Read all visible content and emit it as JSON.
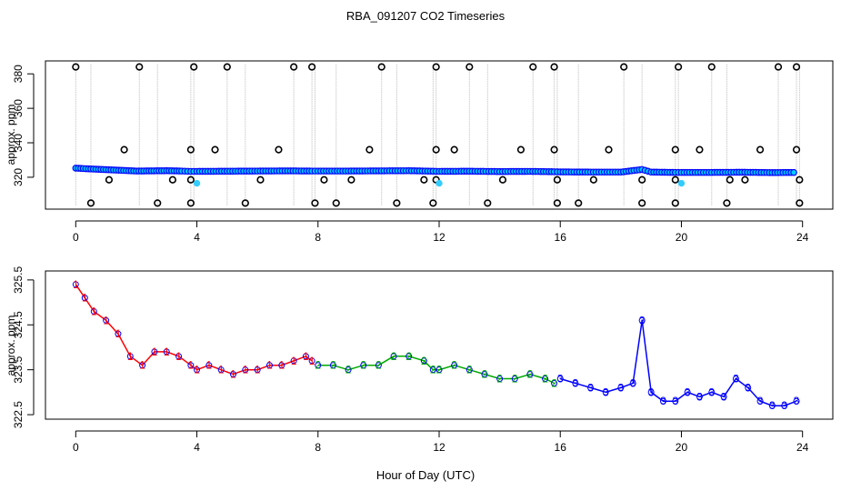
{
  "chart_data": [
    {
      "type": "scatter",
      "title": "RBA_091207  CO2 Timeseries",
      "xlabel": "",
      "ylabel": "approx. ppm",
      "xlim": [
        -1,
        25
      ],
      "ylim": [
        301.5,
        387.5
      ],
      "xticks": [
        0,
        4,
        8,
        12,
        16,
        20,
        24
      ],
      "yticks": [
        320,
        340,
        360,
        380
      ],
      "colors": {
        "main_points": "#0000ff",
        "main_fill": "#00ccff",
        "outlier": "#000000",
        "spike_lines": "#bbbbbb",
        "cyan_points": "#33ccff"
      },
      "series": [
        {
          "name": "",
          "kind": "smooth_points",
          "x": [
            0,
            0.5,
            1,
            1.5,
            2,
            2.5,
            3,
            3.5,
            3.8,
            4,
            5,
            6,
            7,
            7.8,
            8,
            9,
            10,
            11,
            11.8,
            12,
            13,
            14,
            15,
            15.8,
            16,
            17,
            18,
            18.7,
            19,
            19.8,
            20,
            21,
            22,
            23,
            23.8
          ],
          "y": [
            325.3,
            324.8,
            324.4,
            324.0,
            323.6,
            323.7,
            323.8,
            323.6,
            323.4,
            323.4,
            323.5,
            323.6,
            323.7,
            323.6,
            323.6,
            323.6,
            323.7,
            323.8,
            323.5,
            323.4,
            323.5,
            323.3,
            323.4,
            323.2,
            323.1,
            323.0,
            323.0,
            324.5,
            323.0,
            322.8,
            322.8,
            322.8,
            322.9,
            322.7,
            322.8
          ]
        },
        {
          "name": "",
          "kind": "outliers_high",
          "x": [
            0,
            2.1,
            3.9,
            5.0,
            7.2,
            7.8,
            10.1,
            11.9,
            13.0,
            15.1,
            15.8,
            18.1,
            19.9,
            21.0,
            23.2,
            23.8
          ],
          "y": [
            384,
            384,
            384,
            384,
            384,
            384,
            384,
            384,
            384,
            384,
            384,
            384,
            384,
            384,
            384,
            384
          ]
        },
        {
          "name": "",
          "kind": "outliers_mid",
          "x": [
            1.6,
            3.8,
            4.6,
            6.7,
            9.7,
            11.9,
            12.5,
            14.7,
            15.8,
            17.6,
            19.8,
            20.6,
            22.6,
            23.8
          ],
          "y": [
            336,
            336,
            336,
            336,
            336,
            336,
            336,
            336,
            336,
            336,
            336,
            336,
            336,
            336
          ]
        },
        {
          "name": "",
          "kind": "outliers_low",
          "x": [
            1.1,
            3.2,
            3.8,
            6.1,
            8.2,
            9.1,
            11.5,
            11.9,
            14.1,
            15.9,
            17.1,
            18.7,
            19.8,
            21.6,
            22.1,
            23.9
          ],
          "y": [
            318.5,
            318.5,
            318.5,
            318.5,
            318.5,
            318.5,
            318.5,
            318.5,
            318.5,
            318.5,
            318.5,
            318.5,
            318.5,
            318.5,
            318.5,
            318.5
          ]
        },
        {
          "name": "",
          "kind": "outliers_bottom",
          "x": [
            0.5,
            2.7,
            3.8,
            5.6,
            7.9,
            8.6,
            10.6,
            11.8,
            13.6,
            15.9,
            16.6,
            18.7,
            19.8,
            21.5,
            23.9
          ],
          "y": [
            305,
            305,
            305,
            305,
            305,
            305,
            305,
            305,
            305,
            305,
            305,
            305,
            305,
            305,
            305
          ]
        },
        {
          "name": "",
          "kind": "cyan_points",
          "x": [
            4.0,
            12.0,
            20.0
          ],
          "y": [
            316.5,
            316.5,
            316.5
          ]
        }
      ]
    },
    {
      "type": "line",
      "title": "",
      "xlabel": "Hour of Day (UTC)",
      "ylabel": "approx. ppm",
      "xlim": [
        -1,
        25
      ],
      "ylim": [
        322.4,
        325.7
      ],
      "xticks": [
        0,
        4,
        8,
        12,
        16,
        20,
        24
      ],
      "yticks": [
        322.5,
        323.5,
        324.5,
        325.5
      ],
      "colors": {
        "series_1": "#ff0000",
        "series_2": "#00aa00",
        "series_3": "#0000ff"
      },
      "series": [
        {
          "name": "",
          "label_glyph": "1",
          "x": [
            0,
            0.3,
            0.6,
            1.0,
            1.4,
            1.8,
            2.2,
            2.6,
            3.0,
            3.4,
            3.8,
            4.0,
            4.4,
            4.8,
            5.2,
            5.6,
            6.0,
            6.4,
            6.8,
            7.2,
            7.6,
            7.8
          ],
          "y": [
            325.4,
            325.1,
            324.8,
            324.6,
            324.3,
            323.8,
            323.6,
            323.9,
            323.9,
            323.8,
            323.6,
            323.5,
            323.6,
            323.5,
            323.4,
            323.5,
            323.5,
            323.6,
            323.6,
            323.7,
            323.8,
            323.7
          ]
        },
        {
          "name": "",
          "label_glyph": "2",
          "x": [
            8.0,
            8.5,
            9.0,
            9.5,
            10.0,
            10.5,
            11.0,
            11.5,
            11.8,
            12.0,
            12.5,
            13.0,
            13.5,
            14.0,
            14.5,
            15.0,
            15.5,
            15.8
          ],
          "y": [
            323.6,
            323.6,
            323.5,
            323.6,
            323.6,
            323.8,
            323.8,
            323.7,
            323.5,
            323.5,
            323.6,
            323.5,
            323.4,
            323.3,
            323.3,
            323.4,
            323.3,
            323.2
          ]
        },
        {
          "name": "",
          "label_glyph": "3",
          "x": [
            16.0,
            16.5,
            17.0,
            17.5,
            18.0,
            18.4,
            18.7,
            19.0,
            19.4,
            19.8,
            20.2,
            20.6,
            21.0,
            21.4,
            21.8,
            22.2,
            22.6,
            23.0,
            23.4,
            23.8
          ],
          "y": [
            323.3,
            323.2,
            323.1,
            323.0,
            323.1,
            323.2,
            324.6,
            323.0,
            322.8,
            322.8,
            323.0,
            322.9,
            323.0,
            322.9,
            323.3,
            323.1,
            322.8,
            322.7,
            322.7,
            322.8
          ]
        }
      ]
    }
  ]
}
